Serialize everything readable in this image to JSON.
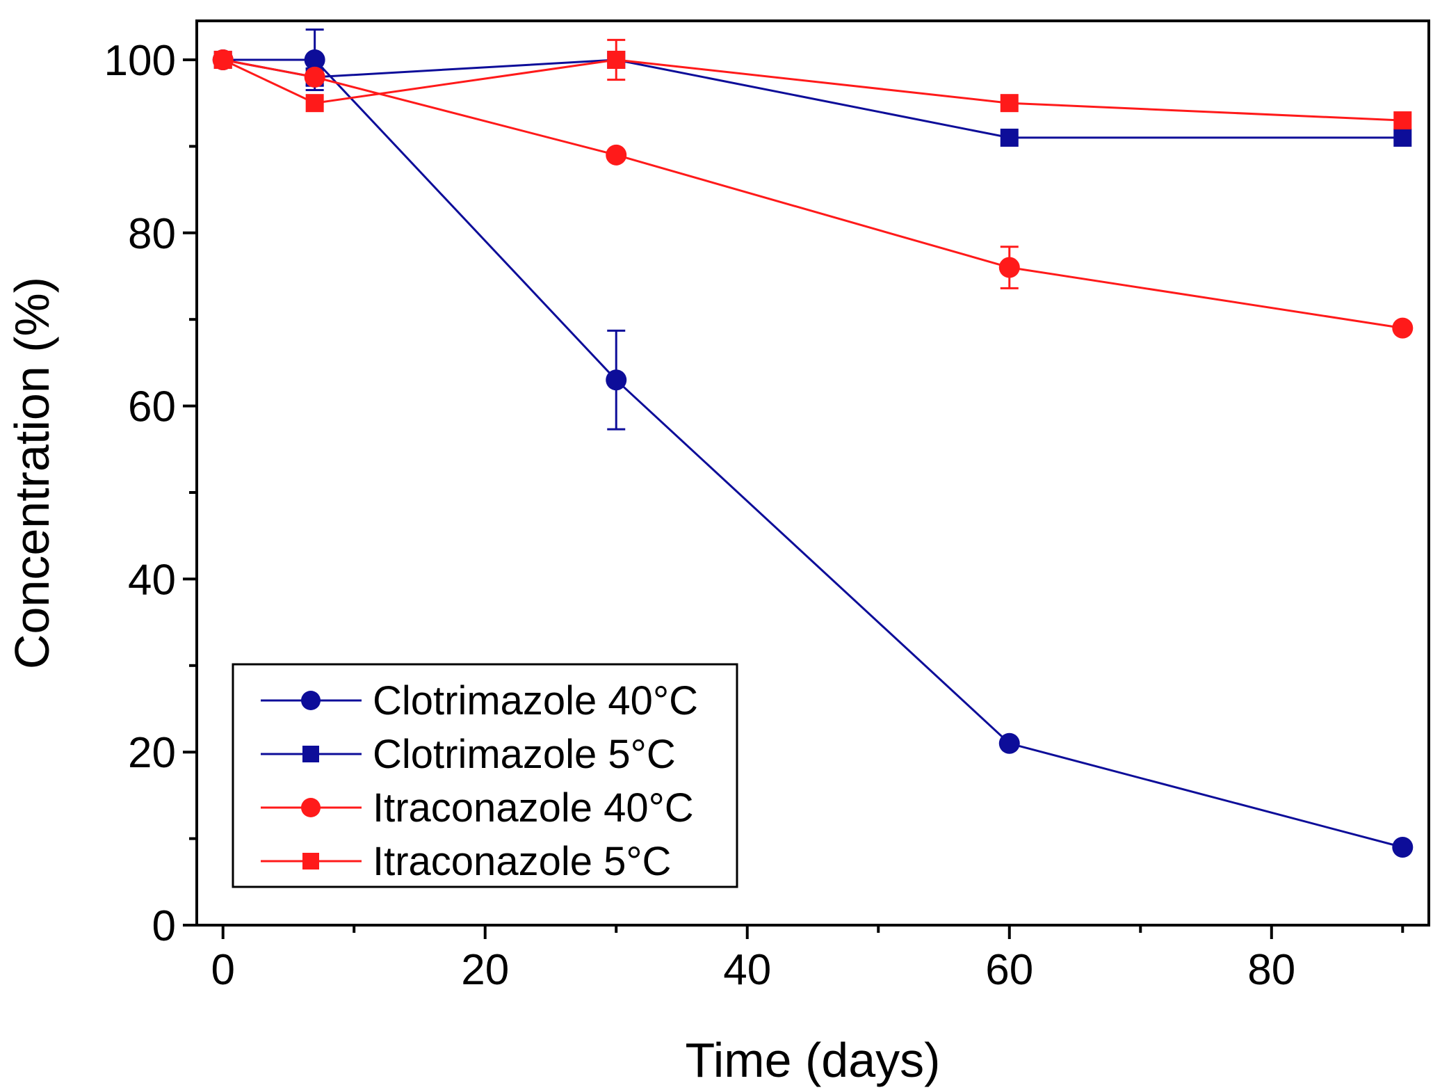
{
  "chart_data": {
    "type": "line",
    "title": "",
    "xlabel": "Time (days)",
    "ylabel": "Concentration (%)",
    "xlim": [
      -2,
      92
    ],
    "ylim": [
      0,
      104.5
    ],
    "x_ticks": [
      0,
      20,
      40,
      60,
      80
    ],
    "x_minor_ticks": [
      10,
      30,
      50,
      70,
      90
    ],
    "y_ticks": [
      0,
      20,
      40,
      60,
      80,
      100
    ],
    "y_minor_ticks": [
      10,
      30,
      50,
      70,
      90
    ],
    "x_tick_labels": [
      "0",
      "20",
      "40",
      "60",
      "80"
    ],
    "y_tick_labels": [
      "0",
      "20",
      "40",
      "60",
      "80",
      "100"
    ],
    "grid": false,
    "legend_position": "bottom-left",
    "series": [
      {
        "name": "Clotrimazole 40°C",
        "color": "#0d0d99",
        "marker": "circle",
        "x": [
          0,
          7,
          30,
          60,
          90
        ],
        "y": [
          100,
          100,
          63,
          21,
          9
        ],
        "error": [
          0,
          3.5,
          5.7,
          0,
          0
        ]
      },
      {
        "name": "Clotrimazole 5°C",
        "color": "#0d0d99",
        "marker": "square",
        "x": [
          0,
          7,
          30,
          60,
          90
        ],
        "y": [
          100,
          98,
          100,
          91,
          91
        ],
        "error": [
          0,
          1,
          0,
          0,
          0
        ]
      },
      {
        "name": "Itraconazole 40°C",
        "color": "#ff1a1a",
        "marker": "circle",
        "x": [
          0,
          7,
          30,
          60,
          90
        ],
        "y": [
          100,
          98,
          89,
          76,
          69
        ],
        "error": [
          0,
          0,
          0,
          2.4,
          0
        ]
      },
      {
        "name": "Itraconazole 5°C",
        "color": "#ff1a1a",
        "marker": "square",
        "x": [
          0,
          7,
          30,
          60,
          90
        ],
        "y": [
          100,
          95,
          100,
          95,
          93
        ],
        "error": [
          0,
          0,
          2.3,
          0,
          0
        ]
      }
    ]
  }
}
